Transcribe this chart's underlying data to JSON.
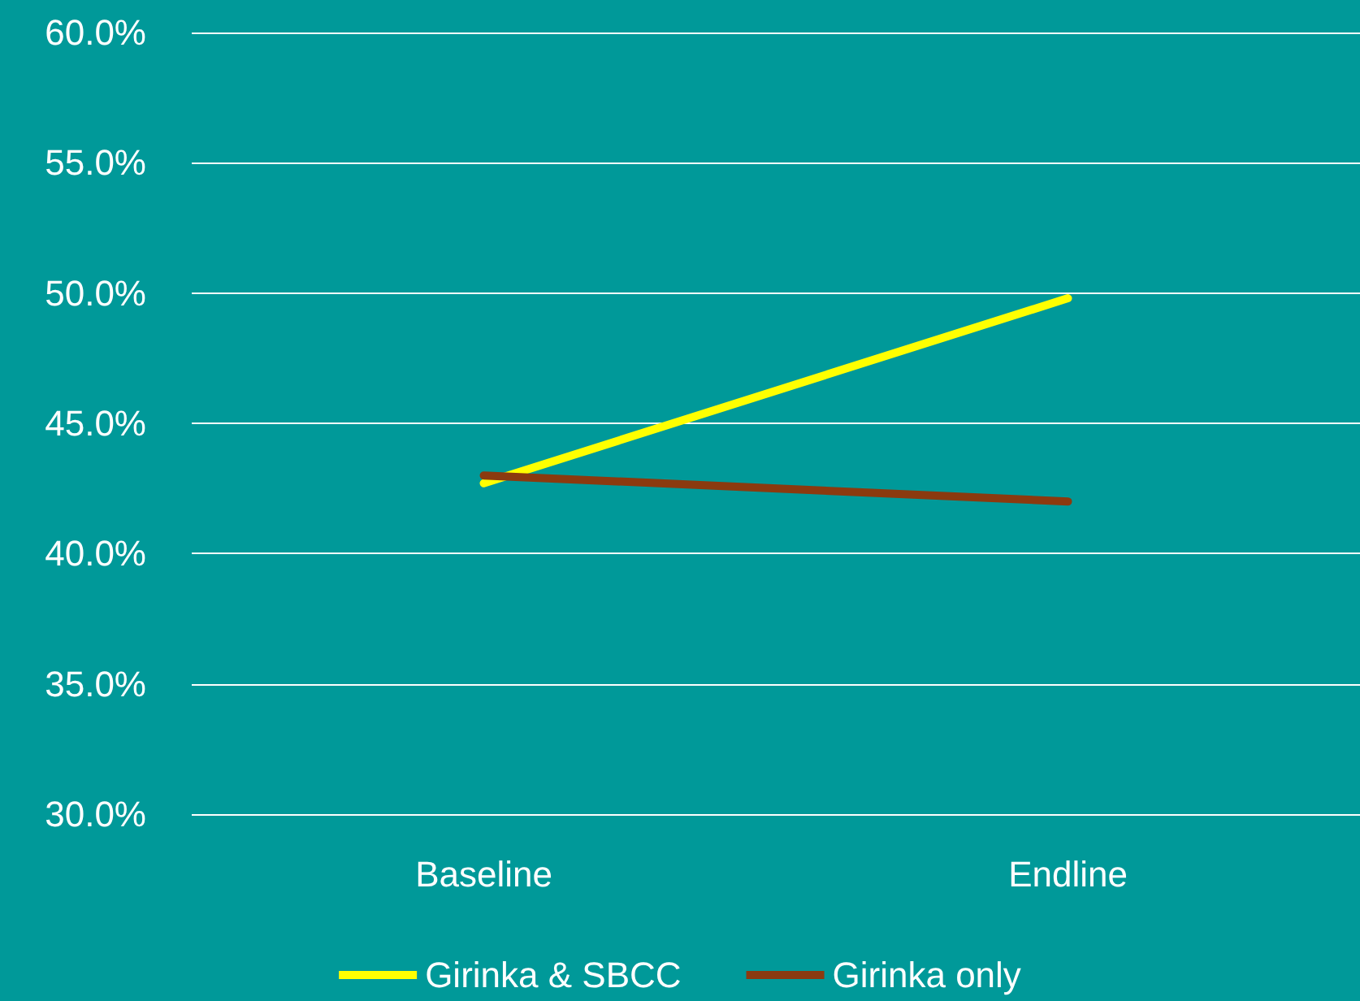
{
  "chart_data": {
    "type": "line",
    "categories": [
      "Baseline",
      "Endline"
    ],
    "series": [
      {
        "name": "Girinka & SBCC",
        "color": "#ffff00",
        "values": [
          42.7,
          49.8
        ]
      },
      {
        "name": "Girinka only",
        "color": "#8b3a0f",
        "values": [
          43.0,
          42.0
        ]
      }
    ],
    "ylim": [
      30,
      60
    ],
    "yticks": [
      {
        "value": 30,
        "label": "30.0%"
      },
      {
        "value": 35,
        "label": "35.0%"
      },
      {
        "value": 40,
        "label": "40.0%"
      },
      {
        "value": 45,
        "label": "45.0%"
      },
      {
        "value": 50,
        "label": "50.0%"
      },
      {
        "value": 55,
        "label": "55.0%"
      },
      {
        "value": 60,
        "label": "60.0%"
      }
    ],
    "grid": "y",
    "legend": "bottom",
    "marker": "none",
    "line_style": "solid"
  }
}
